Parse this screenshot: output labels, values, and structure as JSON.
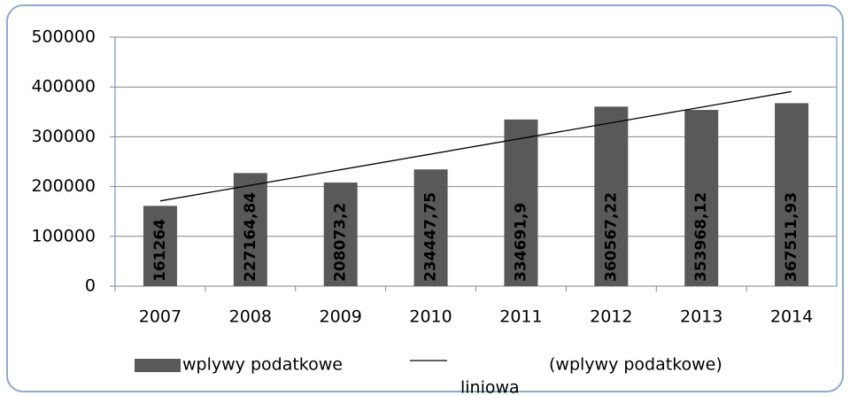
{
  "chart_data": {
    "type": "bar",
    "categories": [
      "2007",
      "2008",
      "2009",
      "2010",
      "2011",
      "2012",
      "2013",
      "2014"
    ],
    "series": [
      {
        "name": "wplywy podatkowe",
        "color": "#595959",
        "values": [
          161264,
          227164.84,
          208073.2,
          234447.75,
          334691.9,
          360567.22,
          353968.12,
          367511.93
        ],
        "value_labels": [
          "161264",
          "227164,84",
          "208073,2",
          "234447,75",
          "334691,9",
          "360567,22",
          "353968,12",
          "367511,93"
        ]
      }
    ],
    "trendline": {
      "type": "linear",
      "label": "liniowa",
      "series_label": "(wplywy podatkowe)",
      "color": "#000000"
    },
    "ylim": [
      0,
      500000
    ],
    "yticks": [
      0,
      100000,
      200000,
      300000,
      400000,
      500000
    ],
    "grid": true,
    "legend": "bottom"
  }
}
